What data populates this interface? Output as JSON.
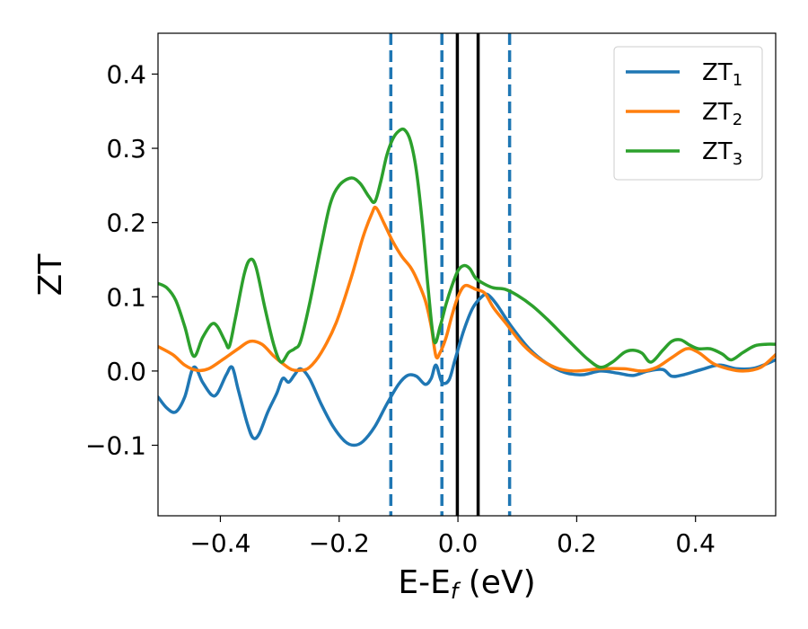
{
  "chart_data": {
    "type": "line",
    "xlabel_main": "E-E",
    "xlabel_sub": "f",
    "xlabel_unit": " (eV)",
    "ylabel": "ZT",
    "xlim": [
      -0.505,
      0.535
    ],
    "ylim": [
      -0.195,
      0.455
    ],
    "xticks": [
      -0.4,
      -0.2,
      0.0,
      0.2,
      0.4
    ],
    "xtick_labels": [
      "−0.4",
      "−0.2",
      "0.0",
      "0.2",
      "0.4"
    ],
    "yticks": [
      -0.1,
      0.0,
      0.1,
      0.2,
      0.3,
      0.4
    ],
    "ytick_labels": [
      "−0.1",
      "0.0",
      "0.1",
      "0.2",
      "0.3",
      "0.4"
    ],
    "grid": false,
    "legend_position": "top-right",
    "vlines": [
      {
        "x": -0.113,
        "style": "dashed",
        "color": "#1f77b4"
      },
      {
        "x": -0.027,
        "style": "dashed",
        "color": "#1f77b4"
      },
      {
        "x": -0.001,
        "style": "solid",
        "color": "#000000"
      },
      {
        "x": 0.034,
        "style": "solid",
        "color": "#000000"
      },
      {
        "x": 0.087,
        "style": "dashed",
        "color": "#1f77b4"
      }
    ],
    "series": [
      {
        "name_main": "ZT",
        "name_sub": "1",
        "color": "#1f77b4",
        "points": [
          [
            -0.505,
            -0.035
          ],
          [
            -0.49,
            -0.05
          ],
          [
            -0.475,
            -0.055
          ],
          [
            -0.46,
            -0.035
          ],
          [
            -0.445,
            0.005
          ],
          [
            -0.43,
            -0.015
          ],
          [
            -0.415,
            -0.032
          ],
          [
            -0.405,
            -0.03
          ],
          [
            -0.39,
            -0.005
          ],
          [
            -0.38,
            0.005
          ],
          [
            -0.37,
            -0.025
          ],
          [
            -0.355,
            -0.07
          ],
          [
            -0.345,
            -0.09
          ],
          [
            -0.335,
            -0.085
          ],
          [
            -0.32,
            -0.055
          ],
          [
            -0.305,
            -0.03
          ],
          [
            -0.295,
            -0.01
          ],
          [
            -0.285,
            -0.015
          ],
          [
            -0.275,
            -0.005
          ],
          [
            -0.265,
            0.003
          ],
          [
            -0.25,
            -0.01
          ],
          [
            -0.23,
            -0.045
          ],
          [
            -0.21,
            -0.075
          ],
          [
            -0.19,
            -0.095
          ],
          [
            -0.175,
            -0.1
          ],
          [
            -0.16,
            -0.095
          ],
          [
            -0.14,
            -0.075
          ],
          [
            -0.12,
            -0.045
          ],
          [
            -0.1,
            -0.018
          ],
          [
            -0.085,
            -0.006
          ],
          [
            -0.07,
            -0.007
          ],
          [
            -0.055,
            -0.018
          ],
          [
            -0.045,
            -0.01
          ],
          [
            -0.037,
            0.008
          ],
          [
            -0.027,
            -0.015
          ],
          [
            -0.015,
            -0.012
          ],
          [
            -0.005,
            0.015
          ],
          [
            0.01,
            0.055
          ],
          [
            0.025,
            0.085
          ],
          [
            0.04,
            0.1
          ],
          [
            0.05,
            0.103
          ],
          [
            0.065,
            0.09
          ],
          [
            0.09,
            0.06
          ],
          [
            0.12,
            0.03
          ],
          [
            0.15,
            0.01
          ],
          [
            0.18,
            -0.002
          ],
          [
            0.21,
            -0.005
          ],
          [
            0.24,
            0.0
          ],
          [
            0.27,
            -0.003
          ],
          [
            0.295,
            -0.006
          ],
          [
            0.32,
            0.0
          ],
          [
            0.345,
            0.002
          ],
          [
            0.36,
            -0.007
          ],
          [
            0.38,
            -0.005
          ],
          [
            0.41,
            0.002
          ],
          [
            0.44,
            0.008
          ],
          [
            0.47,
            0.003
          ],
          [
            0.5,
            0.004
          ],
          [
            0.535,
            0.015
          ]
        ]
      },
      {
        "name_main": "ZT",
        "name_sub": "2",
        "color": "#ff7f0e",
        "points": [
          [
            -0.505,
            0.033
          ],
          [
            -0.48,
            0.022
          ],
          [
            -0.46,
            0.008
          ],
          [
            -0.44,
            0.001
          ],
          [
            -0.42,
            0.003
          ],
          [
            -0.395,
            0.016
          ],
          [
            -0.37,
            0.03
          ],
          [
            -0.35,
            0.04
          ],
          [
            -0.33,
            0.036
          ],
          [
            -0.31,
            0.02
          ],
          [
            -0.295,
            0.01
          ],
          [
            -0.28,
            0.002
          ],
          [
            -0.265,
            0.001
          ],
          [
            -0.25,
            0.005
          ],
          [
            -0.23,
            0.025
          ],
          [
            -0.205,
            0.065
          ],
          [
            -0.18,
            0.125
          ],
          [
            -0.16,
            0.18
          ],
          [
            -0.145,
            0.212
          ],
          [
            -0.138,
            0.22
          ],
          [
            -0.125,
            0.2
          ],
          [
            -0.11,
            0.175
          ],
          [
            -0.095,
            0.155
          ],
          [
            -0.08,
            0.14
          ],
          [
            -0.07,
            0.125
          ],
          [
            -0.055,
            0.095
          ],
          [
            -0.045,
            0.06
          ],
          [
            -0.037,
            0.02
          ],
          [
            -0.03,
            0.025
          ],
          [
            -0.02,
            0.045
          ],
          [
            -0.01,
            0.075
          ],
          [
            0.0,
            0.1
          ],
          [
            0.012,
            0.115
          ],
          [
            0.03,
            0.11
          ],
          [
            0.045,
            0.105
          ],
          [
            0.06,
            0.085
          ],
          [
            0.08,
            0.065
          ],
          [
            0.11,
            0.035
          ],
          [
            0.14,
            0.015
          ],
          [
            0.17,
            0.003
          ],
          [
            0.2,
            0.0
          ],
          [
            0.24,
            0.003
          ],
          [
            0.28,
            0.003
          ],
          [
            0.31,
            0.0
          ],
          [
            0.335,
            0.005
          ],
          [
            0.36,
            0.018
          ],
          [
            0.385,
            0.03
          ],
          [
            0.405,
            0.025
          ],
          [
            0.43,
            0.01
          ],
          [
            0.455,
            0.003
          ],
          [
            0.48,
            0.0
          ],
          [
            0.51,
            0.005
          ],
          [
            0.535,
            0.022
          ]
        ]
      },
      {
        "name_main": "ZT",
        "name_sub": "3",
        "color": "#2ca02c",
        "points": [
          [
            -0.505,
            0.118
          ],
          [
            -0.49,
            0.112
          ],
          [
            -0.475,
            0.095
          ],
          [
            -0.46,
            0.06
          ],
          [
            -0.445,
            0.02
          ],
          [
            -0.43,
            0.045
          ],
          [
            -0.415,
            0.063
          ],
          [
            -0.405,
            0.06
          ],
          [
            -0.392,
            0.04
          ],
          [
            -0.385,
            0.033
          ],
          [
            -0.375,
            0.07
          ],
          [
            -0.36,
            0.13
          ],
          [
            -0.35,
            0.15
          ],
          [
            -0.34,
            0.14
          ],
          [
            -0.325,
            0.085
          ],
          [
            -0.31,
            0.035
          ],
          [
            -0.298,
            0.012
          ],
          [
            -0.285,
            0.025
          ],
          [
            -0.275,
            0.03
          ],
          [
            -0.265,
            0.04
          ],
          [
            -0.25,
            0.09
          ],
          [
            -0.23,
            0.17
          ],
          [
            -0.215,
            0.225
          ],
          [
            -0.2,
            0.25
          ],
          [
            -0.18,
            0.26
          ],
          [
            -0.165,
            0.253
          ],
          [
            -0.15,
            0.235
          ],
          [
            -0.14,
            0.228
          ],
          [
            -0.13,
            0.255
          ],
          [
            -0.12,
            0.29
          ],
          [
            -0.11,
            0.312
          ],
          [
            -0.1,
            0.323
          ],
          [
            -0.09,
            0.325
          ],
          [
            -0.08,
            0.31
          ],
          [
            -0.07,
            0.27
          ],
          [
            -0.06,
            0.2
          ],
          [
            -0.05,
            0.11
          ],
          [
            -0.04,
            0.04
          ],
          [
            -0.03,
            0.06
          ],
          [
            -0.02,
            0.09
          ],
          [
            -0.01,
            0.115
          ],
          [
            0.0,
            0.135
          ],
          [
            0.01,
            0.142
          ],
          [
            0.02,
            0.138
          ],
          [
            0.03,
            0.125
          ],
          [
            0.045,
            0.117
          ],
          [
            0.06,
            0.112
          ],
          [
            0.08,
            0.11
          ],
          [
            0.1,
            0.102
          ],
          [
            0.125,
            0.088
          ],
          [
            0.15,
            0.07
          ],
          [
            0.175,
            0.05
          ],
          [
            0.2,
            0.03
          ],
          [
            0.22,
            0.015
          ],
          [
            0.24,
            0.005
          ],
          [
            0.26,
            0.012
          ],
          [
            0.28,
            0.025
          ],
          [
            0.295,
            0.028
          ],
          [
            0.31,
            0.024
          ],
          [
            0.325,
            0.012
          ],
          [
            0.345,
            0.028
          ],
          [
            0.36,
            0.04
          ],
          [
            0.375,
            0.042
          ],
          [
            0.39,
            0.035
          ],
          [
            0.405,
            0.03
          ],
          [
            0.425,
            0.03
          ],
          [
            0.445,
            0.023
          ],
          [
            0.46,
            0.015
          ],
          [
            0.48,
            0.025
          ],
          [
            0.5,
            0.034
          ],
          [
            0.52,
            0.036
          ],
          [
            0.535,
            0.036
          ]
        ]
      }
    ]
  }
}
